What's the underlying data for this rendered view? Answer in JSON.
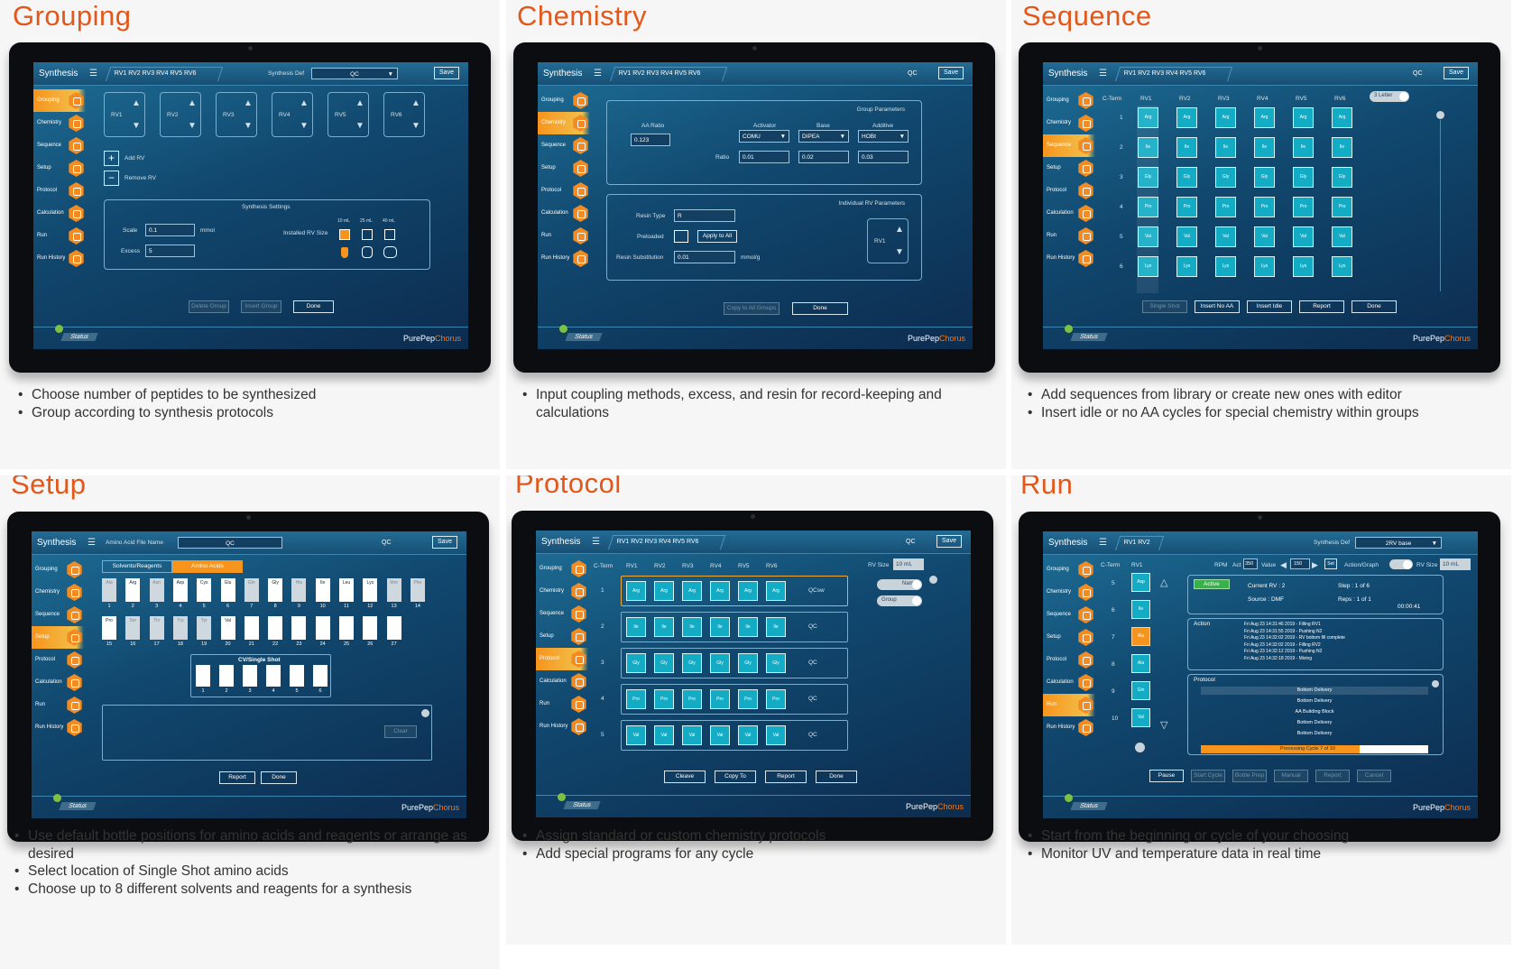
{
  "colors": {
    "accent": "#e4571a",
    "screen": "#11486f",
    "cell": "#14acc5",
    "active": "#f7941d"
  },
  "app": {
    "title": "Synthesis",
    "menu_icon": "menu-icon",
    "status": "Status",
    "brand_a": "PurePep",
    "brand_b": "Chorus",
    "rv_tabs": "RV1 RV2 RV3 RV4 RV5 RV6",
    "save": "Save",
    "qc": "QC"
  },
  "nav": [
    "Grouping",
    "Chemistry",
    "Sequence",
    "Setup",
    "Protocol",
    "Calculation",
    "Run",
    "Run History"
  ],
  "panels": [
    {
      "title": "Grouping",
      "bullets": [
        "Choose number of peptides to be synthesized",
        "Group according to synthesis protocols"
      ]
    },
    {
      "title": "Chemistry",
      "bullets": [
        "Input coupling methods, excess, and resin for record-keeping and calculations"
      ]
    },
    {
      "title": "Sequence",
      "bullets": [
        "Add sequences from library or create new ones with editor",
        "Insert idle or no AA cycles for special chemistry within groups"
      ]
    },
    {
      "title": "Setup",
      "bullets": [
        "Use default bottle positions for amino acids and reagents or arrange as desired",
        "Select location of Single Shot amino acids",
        "Choose up to 8 different solvents and reagents for a synthesis"
      ]
    },
    {
      "title": "Protocol",
      "bullets": [
        "Assign standard or custom chemistry protocols",
        "Add special programs for any cycle"
      ]
    },
    {
      "title": "Run",
      "bullets": [
        "Start from the beginning or cycle of your choosing",
        "Monitor UV and temperature data in real time"
      ]
    }
  ],
  "grouping": {
    "synth_def_label": "Synthesis Def",
    "synth_def_value": "QC",
    "rvs": [
      "RV1",
      "RV2",
      "RV3",
      "RV4",
      "RV5",
      "RV6"
    ],
    "add_rv": "Add RV",
    "remove_rv": "Remove RV",
    "settings_title": "Synthesis Settings",
    "scale_label": "Scale",
    "scale_value": "0.1",
    "scale_unit": "mmol",
    "excess_label": "Excess",
    "excess_value": "5",
    "rv_size_label": "Installed RV Size",
    "sizes": [
      "10 mL",
      "25 mL",
      "40 mL"
    ],
    "buttons": [
      "Delete Group",
      "Insert Group",
      "Done"
    ]
  },
  "chemistry": {
    "group_params": "Group Parameters",
    "aa_ratio_label": "AA Ratio",
    "aa_ratio": "0.123",
    "activator_label": "Activator",
    "activator": "COMU",
    "base_label": "Base",
    "base": "DIPEA",
    "additive_label": "Additive",
    "additive": "HOBt",
    "ratio_label": "Ratio",
    "ratios": [
      "0.01",
      "0.02",
      "0.03"
    ],
    "indiv_params": "Individual RV Parameters",
    "resin_type_label": "Resin Type",
    "resin_type": "R",
    "preloaded_label": "Preloaded",
    "apply_all": "Apply to All",
    "resin_sub_label": "Resin Substitution",
    "resin_sub": "0.01",
    "resin_sub_unit": "mmol/g",
    "rv": "RV1",
    "buttons": [
      "Copy to All Groups",
      "Done"
    ]
  },
  "sequence": {
    "cterm": "C-Term",
    "rvs": [
      "RV1",
      "RV2",
      "RV3",
      "RV4",
      "RV5",
      "RV6"
    ],
    "rows": [
      "1",
      "2",
      "3",
      "4",
      "5",
      "6"
    ],
    "aas": [
      "Arg",
      "Ile",
      "Gly",
      "Pro",
      "Val",
      "Lys"
    ],
    "toggle": "3 Letter",
    "buttons": [
      "Single Shot",
      "Insert No AA",
      "Insert Idle",
      "Report",
      "Done"
    ]
  },
  "setup": {
    "file_label": "Amino Acid File Name",
    "file_value": "QC",
    "tabs": [
      "Solvents/Reagents",
      "Amino Acids"
    ],
    "row1": [
      "Ala",
      "Arg",
      "Asn",
      "Asp",
      "Cys",
      "Glu",
      "Gln",
      "Gly",
      "His",
      "Ile",
      "Leu",
      "Lys",
      "Met",
      "Phe"
    ],
    "row1_nums": [
      "1",
      "2",
      "3",
      "4",
      "5",
      "6",
      "7",
      "8",
      "9",
      "10",
      "11",
      "12",
      "13",
      "14"
    ],
    "row2": [
      "Pro",
      "Ser",
      "Thr",
      "Trp",
      "Tyr",
      "Val",
      "",
      "",
      "",
      "",
      "",
      "",
      ""
    ],
    "row2_nums": [
      "15",
      "16",
      "17",
      "18",
      "19",
      "20",
      "21",
      "22",
      "23",
      "24",
      "25",
      "26",
      "27"
    ],
    "cv_title": "CV/Single Shot",
    "cv_nums": [
      "1",
      "2",
      "3",
      "4",
      "5",
      "6"
    ],
    "clear": "Clear",
    "buttons": [
      "Report",
      "Done"
    ]
  },
  "protocol": {
    "cterm": "C-Term",
    "rvs": [
      "RV1",
      "RV2",
      "RV3",
      "RV4",
      "RV5",
      "RV6"
    ],
    "rows": [
      "1",
      "2",
      "3",
      "4",
      "5"
    ],
    "aas": [
      "Arg",
      "Ile",
      "Gly",
      "Pro",
      "Val"
    ],
    "tags": [
      "QCsw",
      "QC",
      "QC",
      "QC",
      "QC"
    ],
    "rv_size_label": "RV Size",
    "rv_size": "10 mL",
    "toggles": [
      "Name",
      "Group"
    ],
    "buttons": [
      "Cleave",
      "Copy To",
      "Report",
      "Done"
    ]
  },
  "run": {
    "rv_tabs": "RV1 RV2",
    "synth_def_label": "Synthesis Def",
    "synth_def_value": "2RV base",
    "cterm": "C-Term",
    "rv": "RV1",
    "rows": [
      "5",
      "6",
      "7",
      "8",
      "9",
      "10"
    ],
    "aas": [
      "Asp",
      "Ile",
      "Ala",
      "Ala",
      "Gln",
      "Val"
    ],
    "rpm": "RPM",
    "act": "Act",
    "act_val": "350",
    "value": "Value",
    "value_val": "150",
    "set": "Set",
    "action_graph": "Action/Graph",
    "rv_size_label": "RV Size",
    "rv_size": "10 mL",
    "active": "Active",
    "current_rv": "Current RV : 2",
    "step": "Step : 1  of  6",
    "source": "Source     : DMF",
    "reps": "Reps : 1  of  1",
    "time": "00:00:41",
    "action": "Action",
    "log": [
      "Fri Aug 23 14:31:46 2019 - Filling RV1",
      "Fri Aug 23 14:31:55 2019 - Pushing  N2",
      "Fri Aug 23 14:32:02 2019 - RV bottom fill complete",
      "Fri Aug 23 14:32:02 2019 - Filling RV2",
      "Fri Aug 23 14:32:12 2019 - Pushing  N2",
      "Fri Aug 23 14:32:18 2019 - Mixing"
    ],
    "protocol": "Protocol",
    "protocol_items": [
      "Bottom Delivery",
      "Bottom Delivery",
      "AA Building Block",
      "Bottom Delivery",
      "Bottom Delivery"
    ],
    "progress_text": "Processing Cycle 7 of 10",
    "progress": 0.7,
    "buttons": [
      "Pause",
      "Start Cycle",
      "Bottle Prep",
      "Manual",
      "Report",
      "Cancel"
    ]
  }
}
